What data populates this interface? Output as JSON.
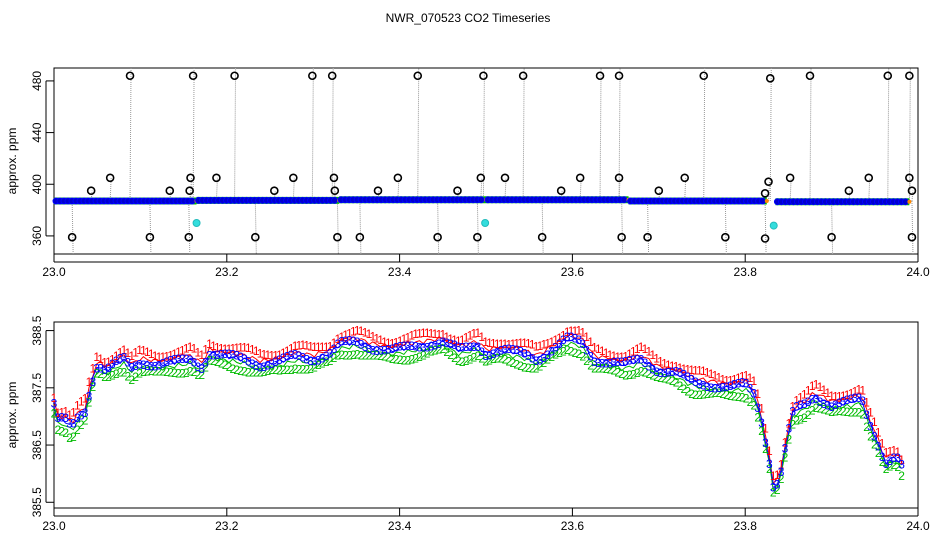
{
  "figure": {
    "title": "NWR_070523  CO2 Timeseries"
  },
  "colors": {
    "series_1": "#ff0000",
    "series_2": "#00bb00",
    "series_3": "#0000ff",
    "spike_points": "#000000",
    "cyan_points": "#33dddd",
    "gray_lines": "#999999",
    "main_trace": "#0000cc"
  },
  "chart_data": [
    {
      "type": "scatter",
      "title": "",
      "xlabel": "",
      "ylabel": "approx. ppm",
      "xlim": [
        23.0,
        24.0
      ],
      "ylim": [
        346,
        490
      ],
      "x_ticks": [
        "23.0",
        "23.2",
        "23.4",
        "23.6",
        "23.8",
        "24.0"
      ],
      "y_ticks": [
        "360",
        "400",
        "440",
        "480"
      ],
      "grid": false,
      "baseline_segments": [
        {
          "x_start": 23.0,
          "x_end": 23.165,
          "y": 387.0
        },
        {
          "x_start": 23.165,
          "x_end": 23.33,
          "y": 387.5
        },
        {
          "x_start": 23.33,
          "x_end": 23.5,
          "y": 388.0
        },
        {
          "x_start": 23.5,
          "x_end": 23.665,
          "y": 388.0
        },
        {
          "x_start": 23.665,
          "x_end": 23.825,
          "y": 387.0
        },
        {
          "x_start": 23.835,
          "x_end": 23.99,
          "y": 386.5
        }
      ],
      "spikes_high": [
        {
          "x": 23.088,
          "y": 484
        },
        {
          "x": 23.161,
          "y": 484
        },
        {
          "x": 23.209,
          "y": 484
        },
        {
          "x": 23.299,
          "y": 484
        },
        {
          "x": 23.322,
          "y": 484
        },
        {
          "x": 23.421,
          "y": 484
        },
        {
          "x": 23.497,
          "y": 484
        },
        {
          "x": 23.543,
          "y": 484
        },
        {
          "x": 23.632,
          "y": 484
        },
        {
          "x": 23.654,
          "y": 484
        },
        {
          "x": 23.752,
          "y": 484
        },
        {
          "x": 23.829,
          "y": 482
        },
        {
          "x": 23.875,
          "y": 484
        },
        {
          "x": 23.965,
          "y": 484
        },
        {
          "x": 23.99,
          "y": 484
        }
      ],
      "spikes_mid": [
        {
          "x": 23.065,
          "y": 405
        },
        {
          "x": 23.158,
          "y": 405
        },
        {
          "x": 23.188,
          "y": 405
        },
        {
          "x": 23.277,
          "y": 405
        },
        {
          "x": 23.324,
          "y": 405
        },
        {
          "x": 23.398,
          "y": 405
        },
        {
          "x": 23.494,
          "y": 405
        },
        {
          "x": 23.522,
          "y": 405
        },
        {
          "x": 23.609,
          "y": 405
        },
        {
          "x": 23.654,
          "y": 405
        },
        {
          "x": 23.73,
          "y": 405
        },
        {
          "x": 23.827,
          "y": 402
        },
        {
          "x": 23.852,
          "y": 405
        },
        {
          "x": 23.943,
          "y": 405
        },
        {
          "x": 23.99,
          "y": 405
        },
        {
          "x": 23.043,
          "y": 395
        },
        {
          "x": 23.134,
          "y": 395
        },
        {
          "x": 23.157,
          "y": 395
        },
        {
          "x": 23.255,
          "y": 395
        },
        {
          "x": 23.325,
          "y": 395
        },
        {
          "x": 23.375,
          "y": 395
        },
        {
          "x": 23.467,
          "y": 395
        },
        {
          "x": 23.587,
          "y": 395
        },
        {
          "x": 23.7,
          "y": 395
        },
        {
          "x": 23.823,
          "y": 393
        },
        {
          "x": 23.92,
          "y": 395
        },
        {
          "x": 23.993,
          "y": 395
        }
      ],
      "spikes_low": [
        {
          "x": 23.021,
          "y": 359
        },
        {
          "x": 23.111,
          "y": 359
        },
        {
          "x": 23.156,
          "y": 359
        },
        {
          "x": 23.233,
          "y": 359
        },
        {
          "x": 23.328,
          "y": 359
        },
        {
          "x": 23.354,
          "y": 359
        },
        {
          "x": 23.444,
          "y": 359
        },
        {
          "x": 23.49,
          "y": 359
        },
        {
          "x": 23.565,
          "y": 359
        },
        {
          "x": 23.657,
          "y": 359
        },
        {
          "x": 23.687,
          "y": 359
        },
        {
          "x": 23.777,
          "y": 359
        },
        {
          "x": 23.823,
          "y": 358
        },
        {
          "x": 23.9,
          "y": 359
        },
        {
          "x": 23.993,
          "y": 359
        }
      ],
      "cyan_points": [
        {
          "x": 23.165,
          "y": 370
        },
        {
          "x": 23.499,
          "y": 370
        },
        {
          "x": 23.833,
          "y": 368
        }
      ]
    },
    {
      "type": "scatter",
      "title": "",
      "xlabel": "",
      "ylabel": "approx. ppm",
      "xlim": [
        23.0,
        24.0
      ],
      "ylim": [
        385.4,
        388.65
      ],
      "x_ticks": [
        "23.0",
        "23.2",
        "23.4",
        "23.6",
        "23.8",
        "24.0"
      ],
      "y_ticks": [
        "385.5",
        "386.5",
        "387.5",
        "388.5"
      ],
      "grid": false,
      "series": [
        {
          "name": "1"
        },
        {
          "name": "2"
        },
        {
          "name": "3"
        }
      ],
      "profile": [
        {
          "x": 23.0,
          "y": 387.2
        },
        {
          "x": 23.005,
          "y": 386.9
        },
        {
          "x": 23.012,
          "y": 386.95
        },
        {
          "x": 23.02,
          "y": 386.8
        },
        {
          "x": 23.028,
          "y": 387.0
        },
        {
          "x": 23.036,
          "y": 387.1
        },
        {
          "x": 23.042,
          "y": 387.5
        },
        {
          "x": 23.05,
          "y": 387.9
        },
        {
          "x": 23.06,
          "y": 387.8
        },
        {
          "x": 23.07,
          "y": 387.9
        },
        {
          "x": 23.08,
          "y": 388.0
        },
        {
          "x": 23.09,
          "y": 387.85
        },
        {
          "x": 23.1,
          "y": 387.95
        },
        {
          "x": 23.12,
          "y": 387.9
        },
        {
          "x": 23.14,
          "y": 387.95
        },
        {
          "x": 23.16,
          "y": 388.0
        },
        {
          "x": 23.17,
          "y": 387.85
        },
        {
          "x": 23.18,
          "y": 388.1
        },
        {
          "x": 23.2,
          "y": 388.05
        },
        {
          "x": 23.22,
          "y": 388.0
        },
        {
          "x": 23.24,
          "y": 387.9
        },
        {
          "x": 23.26,
          "y": 387.95
        },
        {
          "x": 23.28,
          "y": 388.05
        },
        {
          "x": 23.3,
          "y": 388.0
        },
        {
          "x": 23.32,
          "y": 388.1
        },
        {
          "x": 23.33,
          "y": 388.25
        },
        {
          "x": 23.35,
          "y": 388.3
        },
        {
          "x": 23.37,
          "y": 388.2
        },
        {
          "x": 23.39,
          "y": 388.15
        },
        {
          "x": 23.41,
          "y": 388.2
        },
        {
          "x": 23.43,
          "y": 388.25
        },
        {
          "x": 23.45,
          "y": 388.3
        },
        {
          "x": 23.47,
          "y": 388.15
        },
        {
          "x": 23.49,
          "y": 388.25
        },
        {
          "x": 23.5,
          "y": 388.1
        },
        {
          "x": 23.52,
          "y": 388.15
        },
        {
          "x": 23.54,
          "y": 388.1
        },
        {
          "x": 23.56,
          "y": 388.0
        },
        {
          "x": 23.58,
          "y": 388.2
        },
        {
          "x": 23.595,
          "y": 388.35
        },
        {
          "x": 23.61,
          "y": 388.3
        },
        {
          "x": 23.625,
          "y": 388.0
        },
        {
          "x": 23.64,
          "y": 387.95
        },
        {
          "x": 23.66,
          "y": 387.9
        },
        {
          "x": 23.68,
          "y": 388.0
        },
        {
          "x": 23.7,
          "y": 387.8
        },
        {
          "x": 23.72,
          "y": 387.75
        },
        {
          "x": 23.74,
          "y": 387.6
        },
        {
          "x": 23.76,
          "y": 387.55
        },
        {
          "x": 23.78,
          "y": 387.5
        },
        {
          "x": 23.8,
          "y": 387.55
        },
        {
          "x": 23.81,
          "y": 387.4
        },
        {
          "x": 23.818,
          "y": 387.0
        },
        {
          "x": 23.826,
          "y": 386.4
        },
        {
          "x": 23.833,
          "y": 385.75
        },
        {
          "x": 23.84,
          "y": 385.9
        },
        {
          "x": 23.848,
          "y": 386.6
        },
        {
          "x": 23.856,
          "y": 387.1
        },
        {
          "x": 23.87,
          "y": 387.2
        },
        {
          "x": 23.88,
          "y": 387.35
        },
        {
          "x": 23.9,
          "y": 387.2
        },
        {
          "x": 23.92,
          "y": 387.25
        },
        {
          "x": 23.935,
          "y": 387.3
        },
        {
          "x": 23.942,
          "y": 386.95
        },
        {
          "x": 23.952,
          "y": 386.6
        },
        {
          "x": 23.962,
          "y": 386.2
        },
        {
          "x": 23.975,
          "y": 386.3
        },
        {
          "x": 23.985,
          "y": 386.0
        }
      ]
    }
  ]
}
